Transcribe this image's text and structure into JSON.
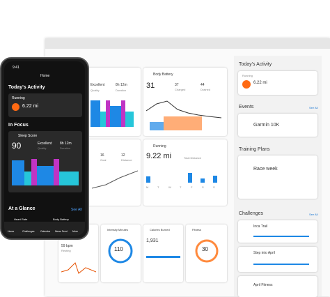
{
  "phone": {
    "time": "9:41",
    "title": "Home",
    "todays_activity": "Today's Activity",
    "activity": {
      "name": "Running",
      "distance": "6.22 mi"
    },
    "in_focus": "In Focus",
    "sleep": {
      "title": "Sleep Score",
      "score": "90",
      "quality": "Excellent",
      "quality_label": "Quality",
      "duration": "8h 12m",
      "duration_label": "Duration"
    },
    "at_a_glance": "At a Glance",
    "see_all": "See All",
    "glance": [
      "Heart Rate",
      "Body Battery"
    ],
    "nav": [
      "Home",
      "Challenges",
      "Calendar",
      "News Feed",
      "More"
    ]
  },
  "desktop": {
    "sleep": {
      "quality": "Excellent",
      "quality_label": "Quality",
      "duration": "8h 12m",
      "duration_label": "Duration"
    },
    "body_battery": {
      "title": "Body Battery",
      "value": "31",
      "charged": "37",
      "charged_label": "Charged",
      "drained": "44",
      "drained_label": "Drained"
    },
    "steps": {
      "goal": "16",
      "goal_label": "Goal",
      "distance": "12",
      "distance_label": "Distance"
    },
    "running": {
      "title": "Running",
      "distance": "9.22 mi",
      "label": "Total Distance",
      "days": [
        "M",
        "T",
        "W",
        "T",
        "F",
        "S",
        "S"
      ]
    },
    "bottom": {
      "resting": {
        "value": "59 bpm",
        "label": "Resting"
      },
      "intensity": {
        "title": "Intensity Minutes",
        "value": "110"
      },
      "calories": {
        "title": "Calories Burned",
        "value": "1,931"
      },
      "fitness": {
        "title": "Fitness",
        "value": "30"
      }
    },
    "right": {
      "todays_activity": "Today's Activity",
      "activity": {
        "name": "Running",
        "distance": "6.22 mi"
      },
      "events": "Events",
      "see_all": "See All",
      "event": "Garmin 10K",
      "training_plans": "Training Plans",
      "plan": "Race week",
      "challenges": "Challenges",
      "challenge_list": [
        "Inca Trail",
        "Step into April",
        "April Fitness"
      ]
    }
  }
}
